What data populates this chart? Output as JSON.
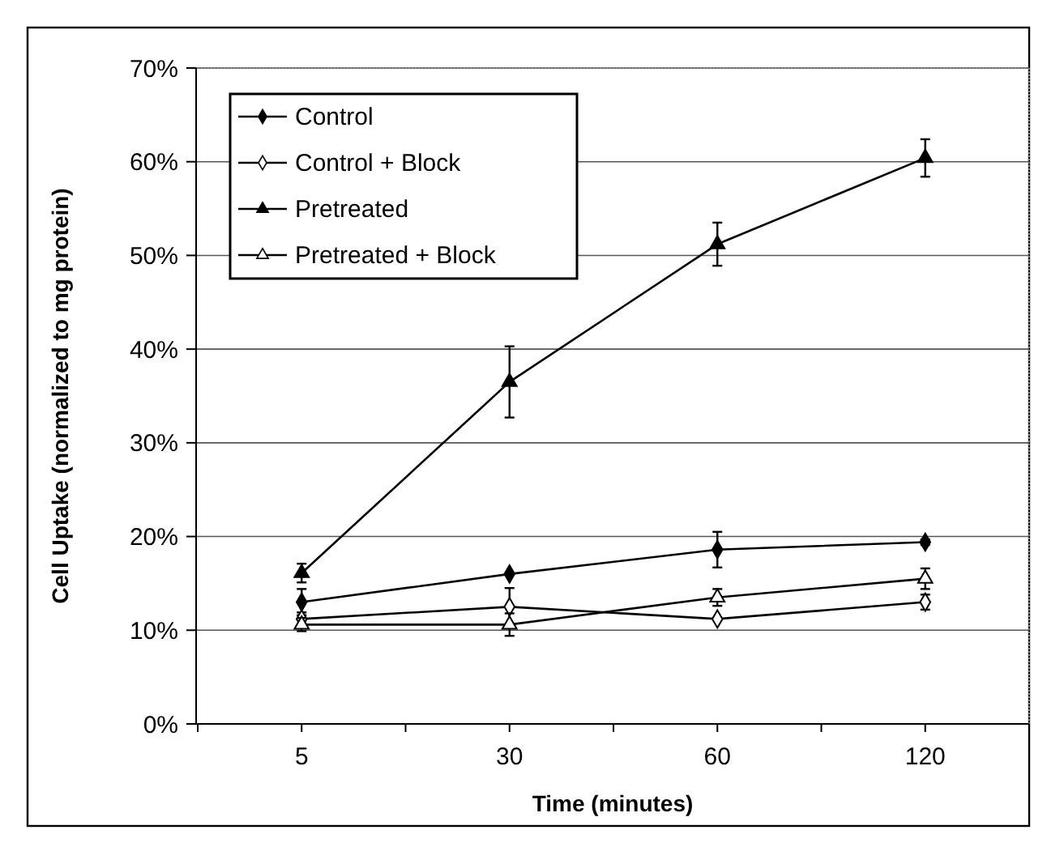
{
  "chart_data": {
    "type": "line",
    "xlabel": "Time (minutes)",
    "ylabel": "Cell Uptake (normalized to mg protein)",
    "categories": [
      "5",
      "30",
      "60",
      "120"
    ],
    "ylim": [
      0,
      70
    ],
    "yticks": [
      {
        "value": 0,
        "label": "0%"
      },
      {
        "value": 10,
        "label": "10%"
      },
      {
        "value": 20,
        "label": "20%"
      },
      {
        "value": 30,
        "label": "30%"
      },
      {
        "value": 40,
        "label": "40%"
      },
      {
        "value": 50,
        "label": "50%"
      },
      {
        "value": 60,
        "label": "60%"
      },
      {
        "value": 70,
        "label": "70%"
      }
    ],
    "grid": "y",
    "legend": "top left",
    "line_style": "solid",
    "series": [
      {
        "name": "Control",
        "color": "#000000",
        "marker": "diamond",
        "values": [
          13,
          16,
          18.6,
          19.4
        ],
        "errors": [
          1.4,
          null,
          1.9,
          0.3
        ]
      },
      {
        "name": "Control + Block",
        "color": "#000000",
        "marker": "diamond",
        "values": [
          11.2,
          12.5,
          11.2,
          13
        ],
        "errors": [
          0.7,
          2,
          null,
          0.8
        ]
      },
      {
        "name": "Pretreated",
        "color": "#000000",
        "marker": "triangle",
        "values": [
          16.1,
          36.5,
          51.2,
          60.4
        ],
        "errors": [
          1,
          3.8,
          2.3,
          2
        ]
      },
      {
        "name": "Pretreated + Block",
        "color": "#000000",
        "marker": "triangle",
        "values": [
          10.6,
          10.6,
          13.5,
          15.5
        ],
        "errors": [
          0.7,
          1.2,
          0.9,
          1.1
        ]
      }
    ]
  }
}
